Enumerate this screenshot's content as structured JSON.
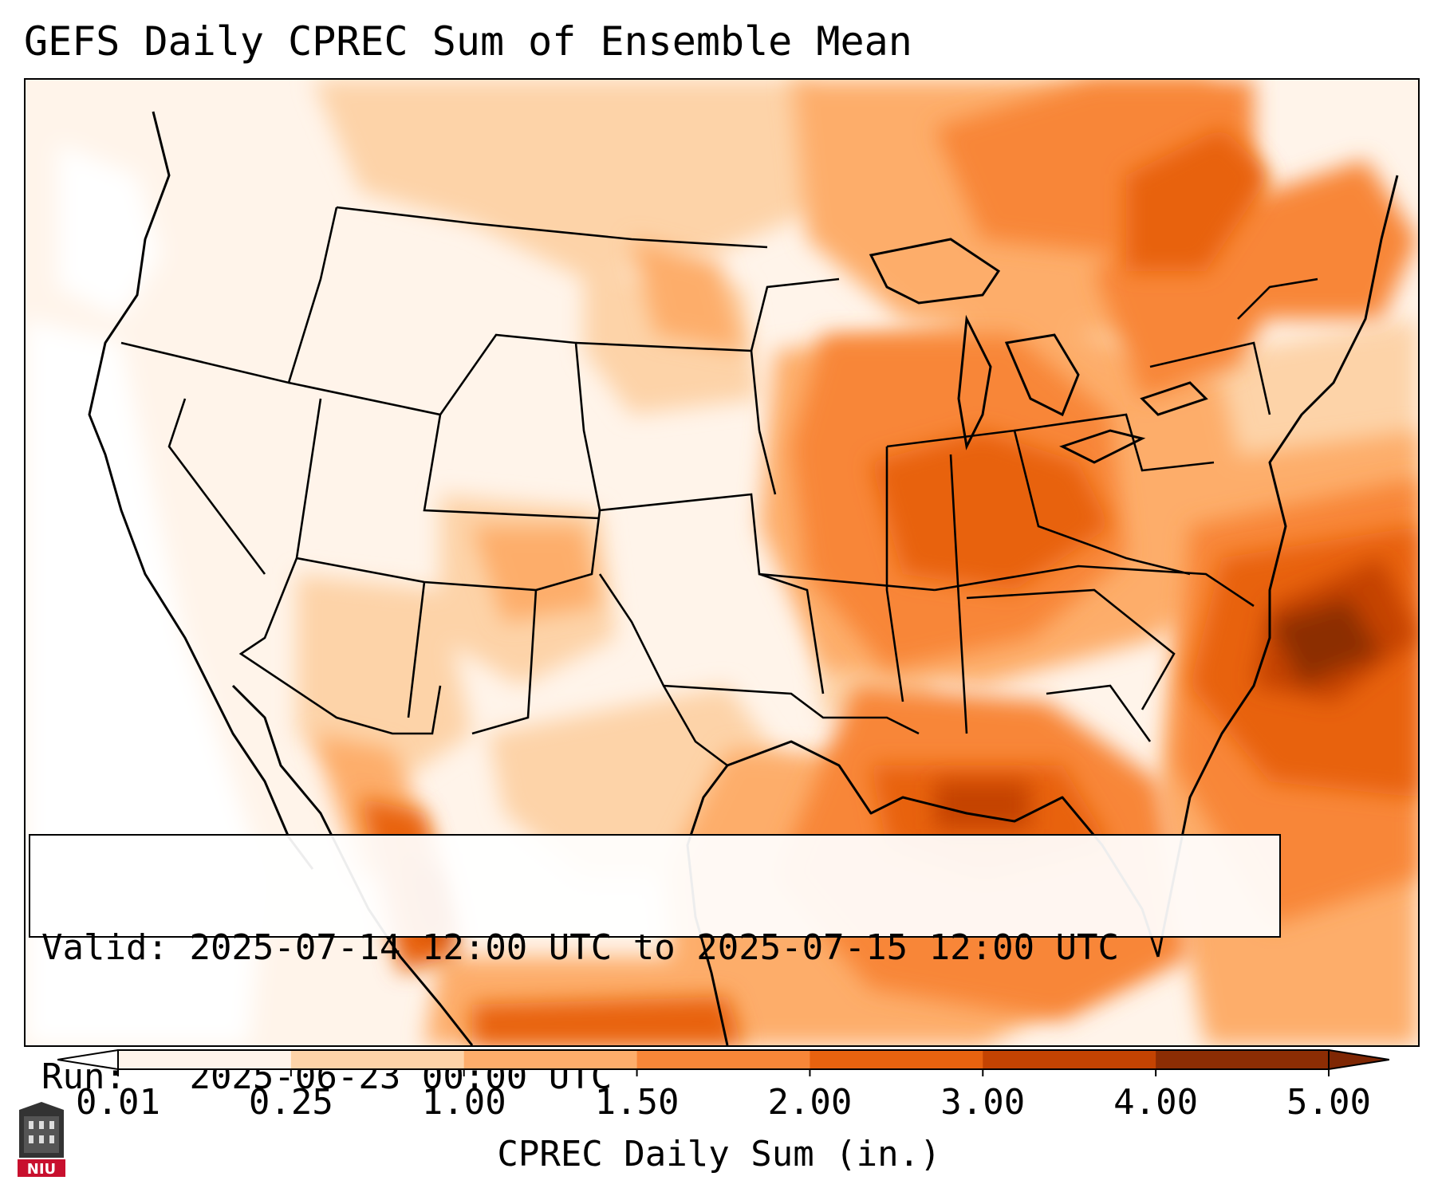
{
  "title": "GEFS Daily CPREC Sum of Ensemble Mean",
  "map": {
    "region": "contiguous-united-states",
    "field": "CPREC daily sum of ensemble mean"
  },
  "info": {
    "valid_label": "Valid:",
    "valid_value": "2025-07-14 12:00 UTC to 2025-07-15 12:00 UTC",
    "run_label": "Run:",
    "run_value": "2025-06-23 00:00 UTC"
  },
  "colorbar": {
    "label": "CPREC Daily Sum (in.)",
    "ticks": [
      "0.01",
      "0.25",
      "1.00",
      "1.50",
      "2.00",
      "3.00",
      "4.00",
      "5.00"
    ],
    "colors": [
      "#fff4ea",
      "#fdd3a8",
      "#fdad6b",
      "#f88638",
      "#e8620f",
      "#c44302",
      "#8c2d04"
    ],
    "under_color": "#ffffff",
    "over_color": "#7f2704"
  },
  "logo": {
    "text": "NIU",
    "icon": "university-building-icon",
    "color": "#c8102e"
  }
}
